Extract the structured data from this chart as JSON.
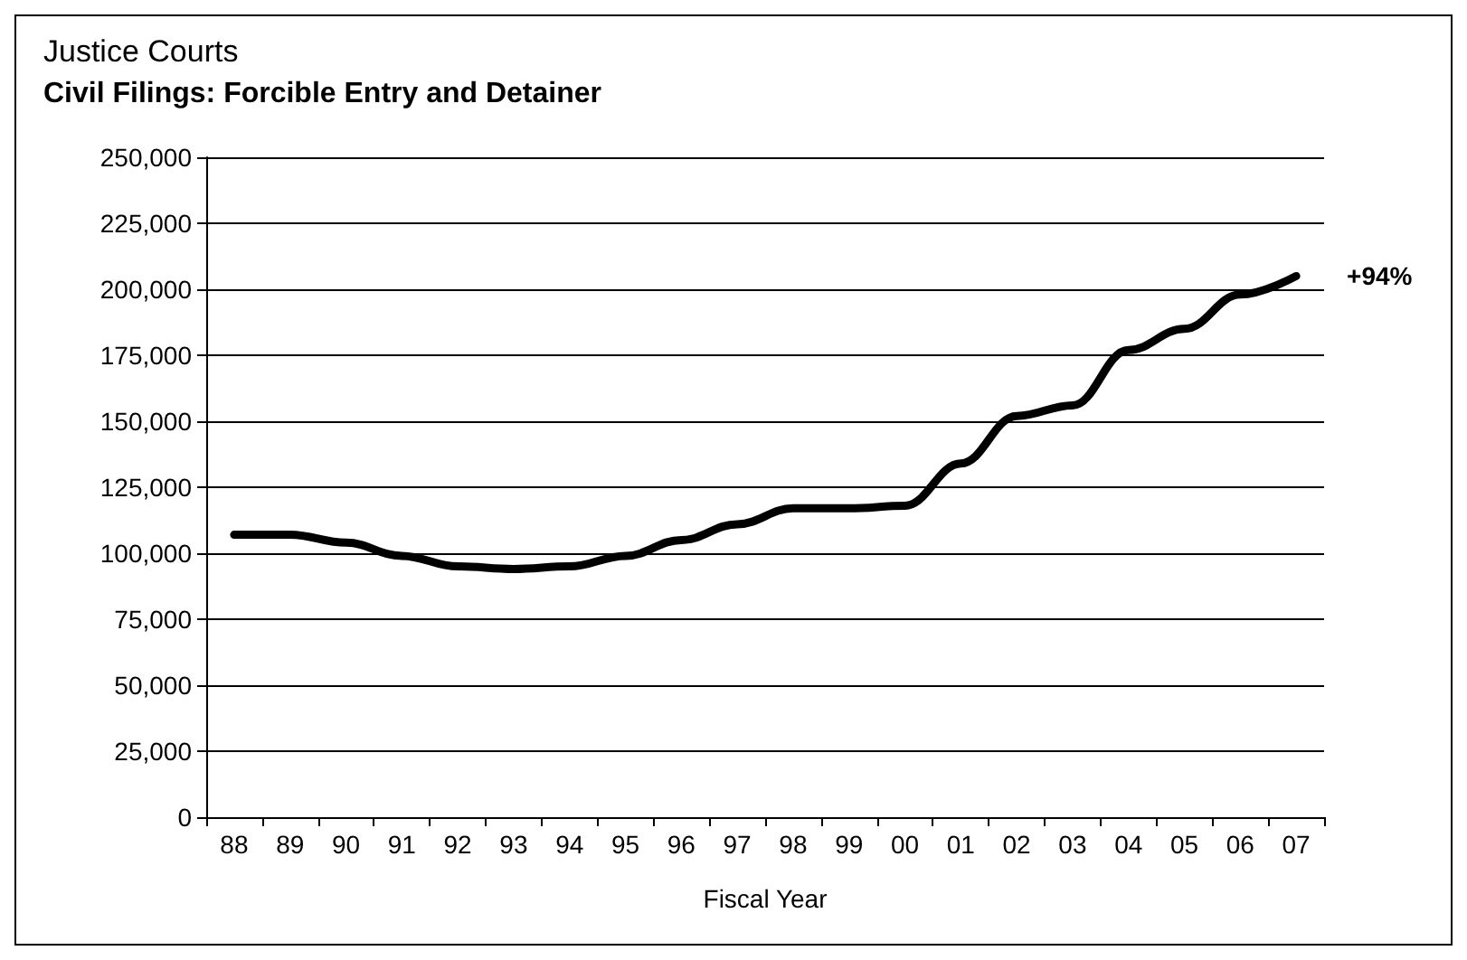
{
  "chart_data": {
    "type": "line",
    "title": "Justice Courts",
    "subtitle": "Civil Filings: Forcible Entry and Detainer",
    "xlabel": "Fiscal Year",
    "categories": [
      "88",
      "89",
      "90",
      "91",
      "92",
      "93",
      "94",
      "95",
      "96",
      "97",
      "98",
      "99",
      "00",
      "01",
      "02",
      "03",
      "04",
      "05",
      "06",
      "07"
    ],
    "series": [
      {
        "color": "#000000",
        "values": [
          107000,
          107000,
          104000,
          99000,
          95000,
          94000,
          95000,
          99000,
          105000,
          111000,
          117000,
          117000,
          118000,
          134000,
          152000,
          156000,
          177000,
          185000,
          198000,
          205000
        ]
      }
    ],
    "ylim": [
      0,
      250000
    ],
    "yticks": [
      0,
      {
        "value": 25000,
        "label": "25,000"
      },
      {
        "value": 50000,
        "label": "50,000"
      },
      {
        "value": 75000,
        "label": "75,000"
      },
      {
        "value": 100000,
        "label": "100,000"
      },
      {
        "value": 125000,
        "label": "125,000"
      },
      {
        "value": 150000,
        "label": "150,000"
      },
      {
        "value": 175000,
        "label": "175,000"
      },
      {
        "value": 200000,
        "label": "200,000"
      },
      {
        "value": 225000,
        "label": "225,000"
      },
      {
        "value": 250000,
        "label": "250,000"
      }
    ],
    "grid": "y",
    "marker": "none",
    "line_style": "solid",
    "annotations": [
      {
        "text": "+94%",
        "x": "07",
        "y": 205000
      }
    ]
  }
}
